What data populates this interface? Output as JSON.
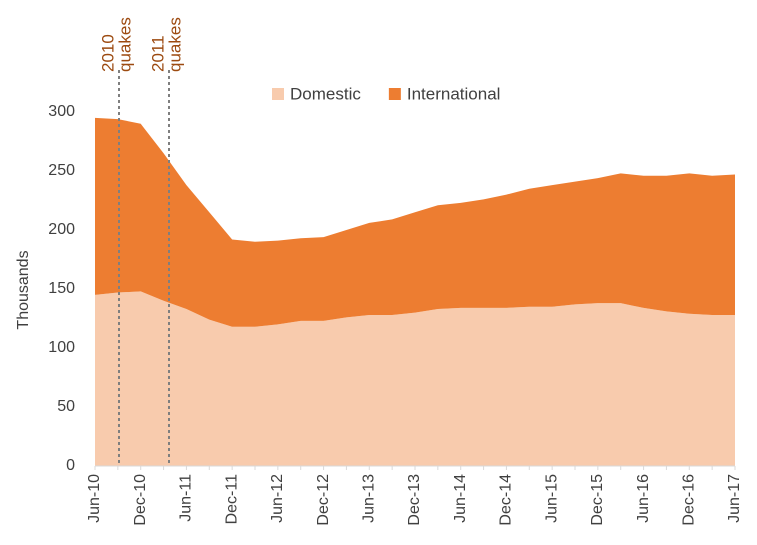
{
  "chart_data": {
    "type": "stacked_area",
    "y_label": "Thousands",
    "categories": [
      "Jun-10",
      null,
      "Dec-10",
      null,
      "Jun-11",
      null,
      "Dec-11",
      null,
      "Jun-12",
      null,
      "Dec-12",
      null,
      "Jun-13",
      null,
      "Dec-13",
      null,
      "Jun-14",
      null,
      "Dec-14",
      null,
      "Jun-15",
      null,
      "Dec-15",
      null,
      "Jun-16",
      null,
      "Dec-16",
      null,
      "Jun-17"
    ],
    "series": [
      {
        "name": "Domestic",
        "color": "#f8cbad",
        "values": [
          145,
          147,
          148,
          140,
          133,
          124,
          118,
          118,
          120,
          123,
          123,
          126,
          128,
          128,
          130,
          133,
          134,
          134,
          134,
          135,
          135,
          137,
          138,
          138,
          134,
          131,
          129,
          128,
          128
        ]
      },
      {
        "name": "International",
        "color": "#ed7d31",
        "values": [
          150,
          147,
          142,
          125,
          105,
          91,
          74,
          72,
          71,
          70,
          71,
          74,
          78,
          81,
          85,
          88,
          89,
          92,
          96,
          100,
          103,
          104,
          106,
          110,
          112,
          115,
          119,
          118,
          119
        ]
      }
    ],
    "annotations": [
      {
        "lines": [
          "2010",
          "quakes"
        ]
      },
      {
        "lines": [
          "2011",
          "quakes"
        ]
      }
    ],
    "annotation_color": "#9c4a10",
    "ylim": [
      0,
      300
    ],
    "yticks": [
      0,
      50,
      100,
      150,
      200,
      250,
      300
    ],
    "legend": "top"
  }
}
